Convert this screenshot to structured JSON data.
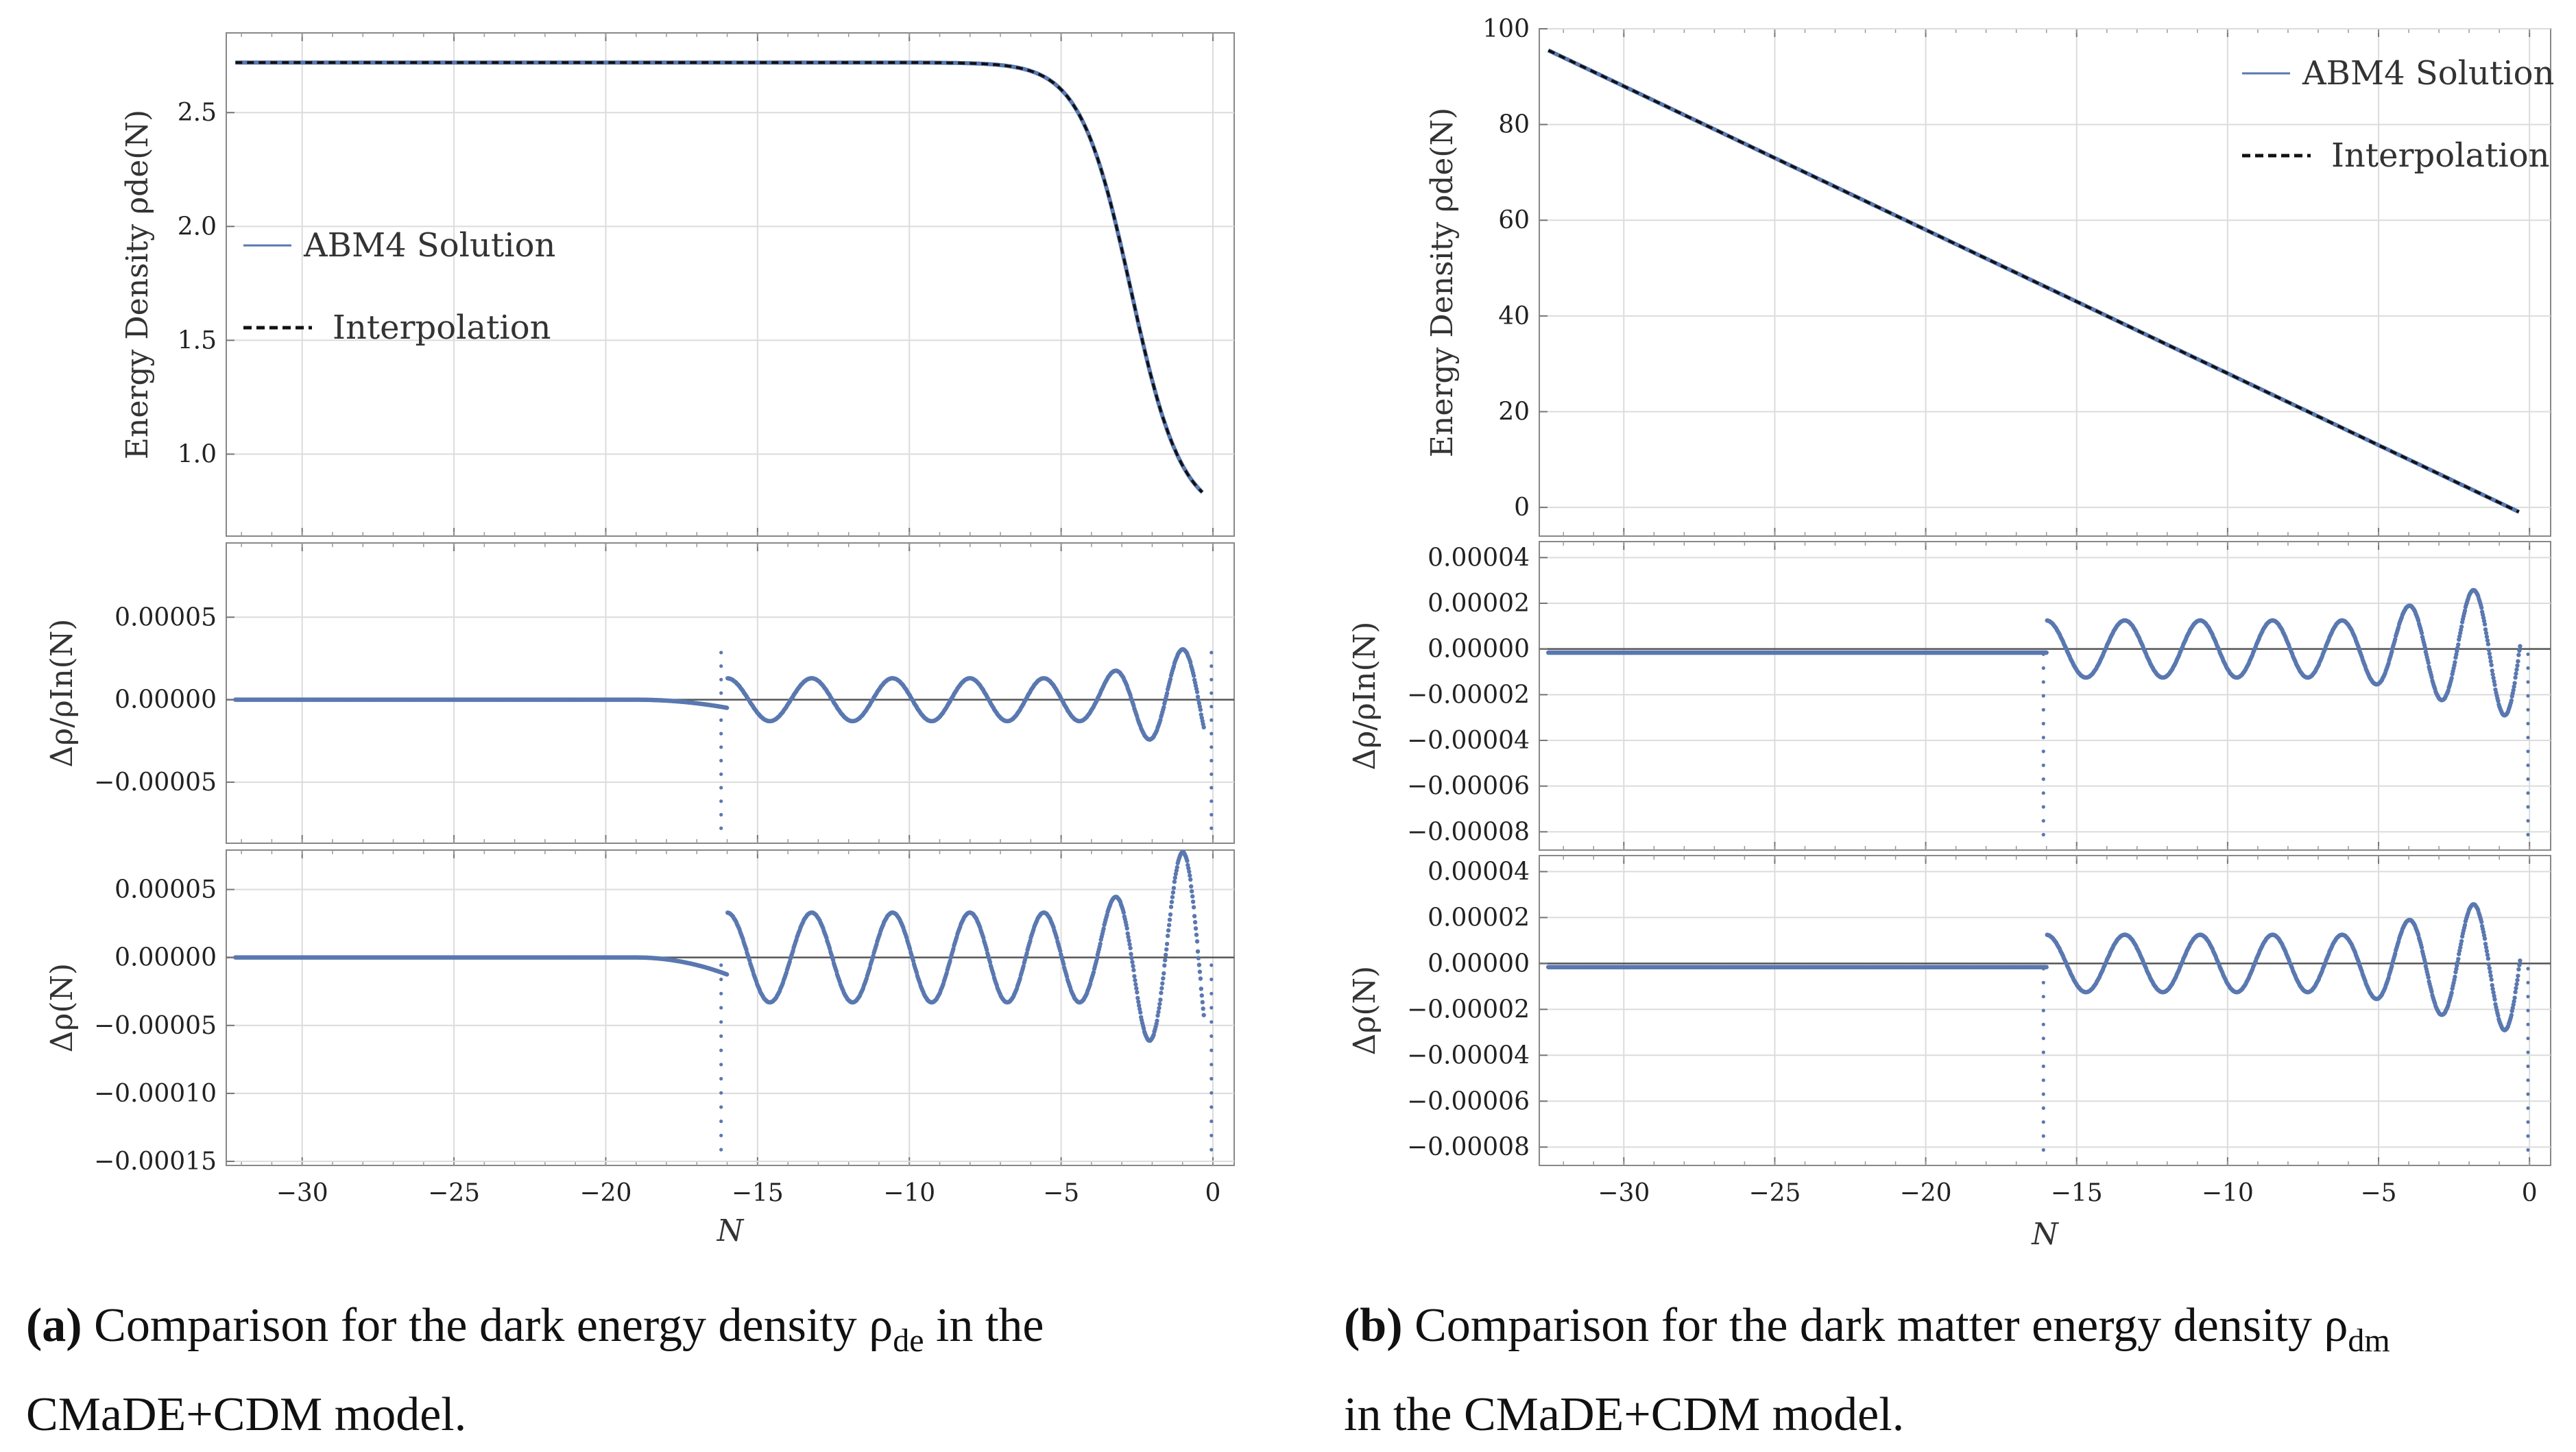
{
  "chart_data": [
    {
      "id": "a",
      "type": "line",
      "xlim": [
        -32.5,
        0.7
      ],
      "x_ticks": [
        -30,
        -25,
        -20,
        -15,
        -10,
        -5,
        0
      ],
      "x_tick_labels": [
        "−30",
        "−25",
        "−20",
        "−15",
        "−10",
        "−5",
        "0"
      ],
      "xlabel": "N",
      "panels": [
        {
          "ylabel": "Energy Density ρde(N)",
          "ylim": [
            0.64,
            2.85
          ],
          "y_ticks": [
            1.0,
            1.5,
            2.0,
            2.5
          ],
          "y_tick_labels": [
            "1.0",
            "1.5",
            "2.0",
            "2.5"
          ],
          "model": "de_density",
          "series": [
            {
              "name": "ABM4 Solution",
              "style": "solid",
              "color": "#5a78b0"
            },
            {
              "name": "Interpolation",
              "style": "dashed",
              "color": "#111111"
            }
          ],
          "legend": "left"
        },
        {
          "ylabel": "Δρ/ρIn(N)",
          "ylim": [
            -8.7e-05,
            9.5e-05
          ],
          "y_ticks": [
            -5e-05,
            0.0,
            5e-05
          ],
          "y_tick_labels": [
            "−0.00005",
            "0.00000",
            "0.00005"
          ],
          "model": "residual_rel_a",
          "series": [
            {
              "name": "Δρ/ρIn",
              "style": "points",
              "color": "#5a78b0"
            }
          ]
        },
        {
          "ylabel": "Δρ(N)",
          "ylim": [
            -0.000153,
            7.9e-05
          ],
          "y_ticks": [
            -0.00015,
            -0.0001,
            -5e-05,
            0.0,
            5e-05
          ],
          "y_tick_labels": [
            "−0.00015",
            "−0.00010",
            "−0.00005",
            "0.00000",
            "0.00005"
          ],
          "model": "residual_abs_a",
          "series": [
            {
              "name": "Δρ",
              "style": "points",
              "color": "#5a78b0"
            }
          ]
        }
      ],
      "caption_label": "(a)",
      "caption_lines": [
        "Comparison for the dark energy density ρ",
        "in the",
        "CMaDE+CDM model."
      ],
      "caption_sub": "de"
    },
    {
      "id": "b",
      "type": "line",
      "xlim": [
        -32.8,
        0.7
      ],
      "x_ticks": [
        -30,
        -25,
        -20,
        -15,
        -10,
        -5,
        0
      ],
      "x_tick_labels": [
        "−30",
        "−25",
        "−20",
        "−15",
        "−10",
        "−5",
        "0"
      ],
      "xlabel": "N",
      "panels": [
        {
          "ylabel": "Energy Density ρde(N)",
          "ylim": [
            -6,
            100
          ],
          "y_ticks": [
            0,
            20,
            40,
            60,
            80,
            100
          ],
          "y_tick_labels": [
            "0",
            "20",
            "40",
            "60",
            "80",
            "100"
          ],
          "model": "dm_density",
          "series": [
            {
              "name": "ABM4 Solution",
              "style": "solid",
              "color": "#5a78b0"
            },
            {
              "name": "Interpolation",
              "style": "dashed",
              "color": "#111111"
            }
          ],
          "legend": "top-right"
        },
        {
          "ylabel": "Δρ/ρIn(N)",
          "ylim": [
            -8.8e-05,
            4.7e-05
          ],
          "y_ticks": [
            -8e-05,
            -6e-05,
            -4e-05,
            -2e-05,
            0.0,
            2e-05,
            4e-05
          ],
          "y_tick_labels": [
            "−0.00008",
            "−0.00006",
            "−0.00004",
            "−0.00002",
            "0.00000",
            "0.00002",
            "0.00004"
          ],
          "model": "residual_b",
          "series": [
            {
              "name": "Δρ/ρIn",
              "style": "points",
              "color": "#5a78b0"
            }
          ]
        },
        {
          "ylabel": "Δρ(N)",
          "ylim": [
            -8.8e-05,
            4.7e-05
          ],
          "y_ticks": [
            -8e-05,
            -6e-05,
            -4e-05,
            -2e-05,
            0.0,
            2e-05,
            4e-05
          ],
          "y_tick_labels": [
            "−0.00008",
            "−0.00006",
            "−0.00004",
            "−0.00002",
            "0.00000",
            "0.00002",
            "0.00004"
          ],
          "model": "residual_b",
          "series": [
            {
              "name": "Δρ",
              "style": "points",
              "color": "#5a78b0"
            }
          ]
        }
      ],
      "caption_label": "(b)",
      "caption_lines": [
        "Comparison for the dark matter energy density ρ",
        "",
        "in the CMaDE+CDM model."
      ],
      "caption_sub": "dm"
    }
  ],
  "colors": {
    "abm4": "#5a78b0",
    "interp": "#111111",
    "grid": "#dcdcdc",
    "frame": "#888888"
  }
}
